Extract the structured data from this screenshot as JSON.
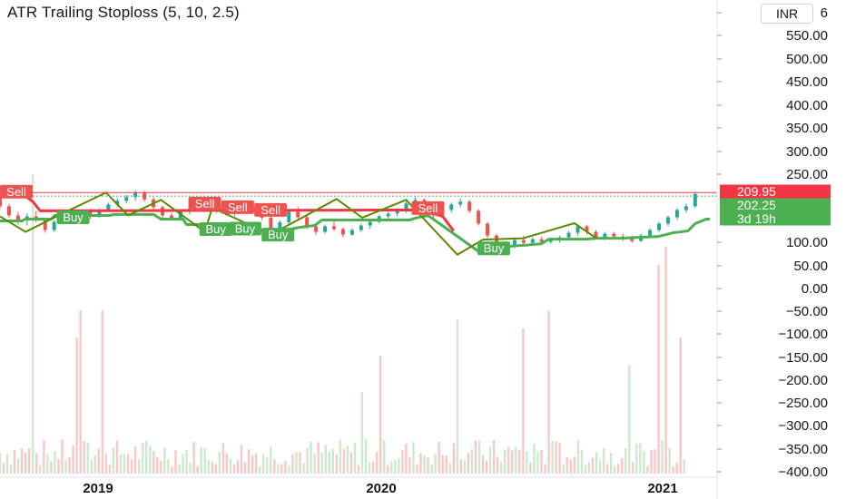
{
  "chart_data": {
    "type": "candlestick",
    "title": "ATR Trailing Stoploss (5, 10, 2.5)",
    "currency": "INR",
    "y_axis_labels": [
      "6",
      "550.00",
      "500.00",
      "450.00",
      "400.00",
      "350.00",
      "300.00",
      "250.00",
      "100.00",
      "50.00",
      "0.00",
      "−50.00",
      "−100.00",
      "−150.00",
      "−200.00",
      "−250.00",
      "−300.00",
      "−350.00",
      "−400.00"
    ],
    "ylim": [
      -410,
      600
    ],
    "x_axis_labels": [
      "2019",
      "2020",
      "2021"
    ],
    "price_tags": [
      {
        "label": "209.95",
        "value": 209.95,
        "color": "#f23645"
      },
      {
        "label": "202.25",
        "value": 202.25,
        "color": "#4caf50"
      },
      {
        "label": "3d 19h",
        "value": 180,
        "color": "#4caf50"
      }
    ],
    "signals": [
      {
        "type": "Sell",
        "x": 0.5,
        "value": 212
      },
      {
        "type": "Buy",
        "x": 16,
        "value": 156
      },
      {
        "type": "Sell",
        "x": 52,
        "value": 186
      },
      {
        "type": "Sell",
        "x": 61,
        "value": 178
      },
      {
        "type": "Sell",
        "x": 70,
        "value": 172
      },
      {
        "type": "Buy",
        "x": 55,
        "value": 130
      },
      {
        "type": "Buy",
        "x": 63,
        "value": 131
      },
      {
        "type": "Buy",
        "x": 72,
        "value": 118
      },
      {
        "type": "Sell",
        "x": 113,
        "value": 176
      },
      {
        "type": "Buy",
        "x": 131,
        "value": 88
      }
    ],
    "series": [
      {
        "name": "Buy stop",
        "color": "#4caf50",
        "points": [
          [
            0,
            148
          ],
          [
            6,
            148
          ],
          [
            7,
            152
          ],
          [
            14,
            152
          ],
          [
            15,
            160
          ],
          [
            30,
            160
          ],
          [
            31,
            162
          ],
          [
            42,
            162
          ],
          [
            44,
            152
          ],
          [
            50,
            152
          ],
          [
            51,
            140
          ],
          [
            63,
            140
          ],
          [
            64,
            133
          ],
          [
            68,
            130
          ],
          [
            69,
            128
          ],
          [
            78,
            128
          ],
          [
            82,
            134
          ],
          [
            86,
            138
          ],
          [
            88,
            150
          ],
          [
            112,
            150
          ],
          [
            114,
            155
          ],
          [
            117,
            160
          ],
          [
            131,
            80
          ],
          [
            132,
            80
          ],
          [
            135,
            86
          ],
          [
            140,
            93
          ],
          [
            144,
            95
          ],
          [
            148,
            98
          ],
          [
            150,
            108
          ],
          [
            160,
            108
          ],
          [
            163,
            110
          ],
          [
            170,
            110
          ],
          [
            172,
            111
          ],
          [
            180,
            114
          ],
          [
            184,
            122
          ],
          [
            188,
            126
          ],
          [
            190,
            142
          ],
          [
            193,
            152
          ],
          [
            194,
            152
          ]
        ]
      },
      {
        "name": "Sell stop",
        "color": "#f23645",
        "points": [
          [
            0,
            205
          ],
          [
            7,
            202
          ],
          [
            9,
            190
          ],
          [
            11,
            170
          ],
          [
            113,
            172
          ],
          [
            116,
            170
          ],
          [
            121,
            158
          ],
          [
            124,
            126
          ]
        ]
      },
      {
        "name": "Swing line",
        "color": "#5b8c00",
        "points": [
          [
            0,
            158
          ],
          [
            7,
            124
          ],
          [
            17,
            164
          ],
          [
            29,
            210
          ],
          [
            35,
            160
          ],
          [
            44,
            194
          ],
          [
            56,
            124
          ],
          [
            58,
            177
          ],
          [
            74,
            118
          ],
          [
            92,
            196
          ],
          [
            99,
            155
          ],
          [
            111,
            194
          ],
          [
            125,
            74
          ],
          [
            132,
            107
          ],
          [
            143,
            110
          ],
          [
            157,
            143
          ],
          [
            163,
            110
          ]
        ]
      }
    ],
    "candles": [
      {
        "o": 203,
        "h": 212,
        "l": 175,
        "c": 180
      },
      {
        "o": 180,
        "h": 185,
        "l": 155,
        "c": 160
      },
      {
        "o": 160,
        "h": 168,
        "l": 140,
        "c": 150
      },
      {
        "o": 150,
        "h": 165,
        "l": 138,
        "c": 158
      },
      {
        "o": 158,
        "h": 170,
        "l": 145,
        "c": 150
      },
      {
        "o": 150,
        "h": 152,
        "l": 122,
        "c": 128
      },
      {
        "o": 128,
        "h": 150,
        "l": 124,
        "c": 146
      },
      {
        "o": 146,
        "h": 168,
        "l": 140,
        "c": 162
      },
      {
        "o": 162,
        "h": 170,
        "l": 150,
        "c": 155
      },
      {
        "o": 155,
        "h": 172,
        "l": 150,
        "c": 168
      },
      {
        "o": 168,
        "h": 175,
        "l": 152,
        "c": 158
      },
      {
        "o": 158,
        "h": 175,
        "l": 155,
        "c": 172
      },
      {
        "o": 172,
        "h": 188,
        "l": 168,
        "c": 184
      },
      {
        "o": 184,
        "h": 198,
        "l": 178,
        "c": 192
      },
      {
        "o": 192,
        "h": 205,
        "l": 186,
        "c": 200
      },
      {
        "o": 200,
        "h": 215,
        "l": 192,
        "c": 210
      },
      {
        "o": 210,
        "h": 214,
        "l": 190,
        "c": 195
      },
      {
        "o": 195,
        "h": 200,
        "l": 172,
        "c": 178
      },
      {
        "o": 178,
        "h": 182,
        "l": 155,
        "c": 160
      },
      {
        "o": 160,
        "h": 165,
        "l": 150,
        "c": 154
      },
      {
        "o": 154,
        "h": 172,
        "l": 152,
        "c": 168
      },
      {
        "o": 168,
        "h": 180,
        "l": 162,
        "c": 175
      },
      {
        "o": 175,
        "h": 195,
        "l": 170,
        "c": 190
      },
      {
        "o": 190,
        "h": 198,
        "l": 180,
        "c": 184
      },
      {
        "o": 184,
        "h": 190,
        "l": 165,
        "c": 172
      },
      {
        "o": 172,
        "h": 178,
        "l": 160,
        "c": 165
      },
      {
        "o": 165,
        "h": 175,
        "l": 158,
        "c": 170
      },
      {
        "o": 170,
        "h": 182,
        "l": 164,
        "c": 176
      },
      {
        "o": 176,
        "h": 184,
        "l": 165,
        "c": 170
      },
      {
        "o": 170,
        "h": 174,
        "l": 150,
        "c": 155
      },
      {
        "o": 155,
        "h": 158,
        "l": 126,
        "c": 132
      },
      {
        "o": 132,
        "h": 150,
        "l": 128,
        "c": 145
      },
      {
        "o": 145,
        "h": 172,
        "l": 140,
        "c": 168
      },
      {
        "o": 168,
        "h": 180,
        "l": 150,
        "c": 156
      },
      {
        "o": 156,
        "h": 160,
        "l": 130,
        "c": 136
      },
      {
        "o": 136,
        "h": 142,
        "l": 118,
        "c": 124
      },
      {
        "o": 124,
        "h": 140,
        "l": 120,
        "c": 136
      },
      {
        "o": 136,
        "h": 148,
        "l": 126,
        "c": 130
      },
      {
        "o": 130,
        "h": 134,
        "l": 112,
        "c": 118
      },
      {
        "o": 118,
        "h": 132,
        "l": 115,
        "c": 128
      },
      {
        "o": 128,
        "h": 142,
        "l": 124,
        "c": 138
      },
      {
        "o": 138,
        "h": 150,
        "l": 130,
        "c": 146
      },
      {
        "o": 146,
        "h": 162,
        "l": 142,
        "c": 158
      },
      {
        "o": 158,
        "h": 170,
        "l": 150,
        "c": 164
      },
      {
        "o": 164,
        "h": 176,
        "l": 158,
        "c": 170
      },
      {
        "o": 170,
        "h": 190,
        "l": 166,
        "c": 186
      },
      {
        "o": 186,
        "h": 200,
        "l": 180,
        "c": 194
      },
      {
        "o": 194,
        "h": 198,
        "l": 170,
        "c": 176
      },
      {
        "o": 176,
        "h": 180,
        "l": 155,
        "c": 160
      },
      {
        "o": 160,
        "h": 176,
        "l": 156,
        "c": 172
      },
      {
        "o": 172,
        "h": 188,
        "l": 166,
        "c": 184
      },
      {
        "o": 184,
        "h": 198,
        "l": 178,
        "c": 190
      },
      {
        "o": 190,
        "h": 194,
        "l": 165,
        "c": 170
      },
      {
        "o": 170,
        "h": 174,
        "l": 138,
        "c": 142
      },
      {
        "o": 142,
        "h": 146,
        "l": 110,
        "c": 116
      },
      {
        "o": 116,
        "h": 120,
        "l": 80,
        "c": 86
      },
      {
        "o": 86,
        "h": 98,
        "l": 72,
        "c": 94
      },
      {
        "o": 94,
        "h": 112,
        "l": 88,
        "c": 106
      },
      {
        "o": 106,
        "h": 116,
        "l": 96,
        "c": 100
      },
      {
        "o": 100,
        "h": 112,
        "l": 94,
        "c": 108
      },
      {
        "o": 108,
        "h": 114,
        "l": 96,
        "c": 102
      },
      {
        "o": 102,
        "h": 110,
        "l": 98,
        "c": 106
      },
      {
        "o": 106,
        "h": 116,
        "l": 100,
        "c": 112
      },
      {
        "o": 112,
        "h": 126,
        "l": 108,
        "c": 122
      },
      {
        "o": 122,
        "h": 140,
        "l": 116,
        "c": 136
      },
      {
        "o": 136,
        "h": 140,
        "l": 118,
        "c": 124
      },
      {
        "o": 124,
        "h": 128,
        "l": 108,
        "c": 112
      },
      {
        "o": 112,
        "h": 124,
        "l": 106,
        "c": 120
      },
      {
        "o": 120,
        "h": 124,
        "l": 108,
        "c": 114
      },
      {
        "o": 114,
        "h": 120,
        "l": 104,
        "c": 110
      },
      {
        "o": 110,
        "h": 116,
        "l": 100,
        "c": 104
      },
      {
        "o": 104,
        "h": 120,
        "l": 102,
        "c": 116
      },
      {
        "o": 116,
        "h": 132,
        "l": 112,
        "c": 128
      },
      {
        "o": 128,
        "h": 146,
        "l": 124,
        "c": 142
      },
      {
        "o": 142,
        "h": 160,
        "l": 136,
        "c": 156
      },
      {
        "o": 156,
        "h": 176,
        "l": 150,
        "c": 172
      },
      {
        "o": 172,
        "h": 186,
        "l": 166,
        "c": 180
      },
      {
        "o": 180,
        "h": 212,
        "l": 176,
        "c": 207
      }
    ],
    "volume_range": [
      -410,
      600
    ]
  }
}
